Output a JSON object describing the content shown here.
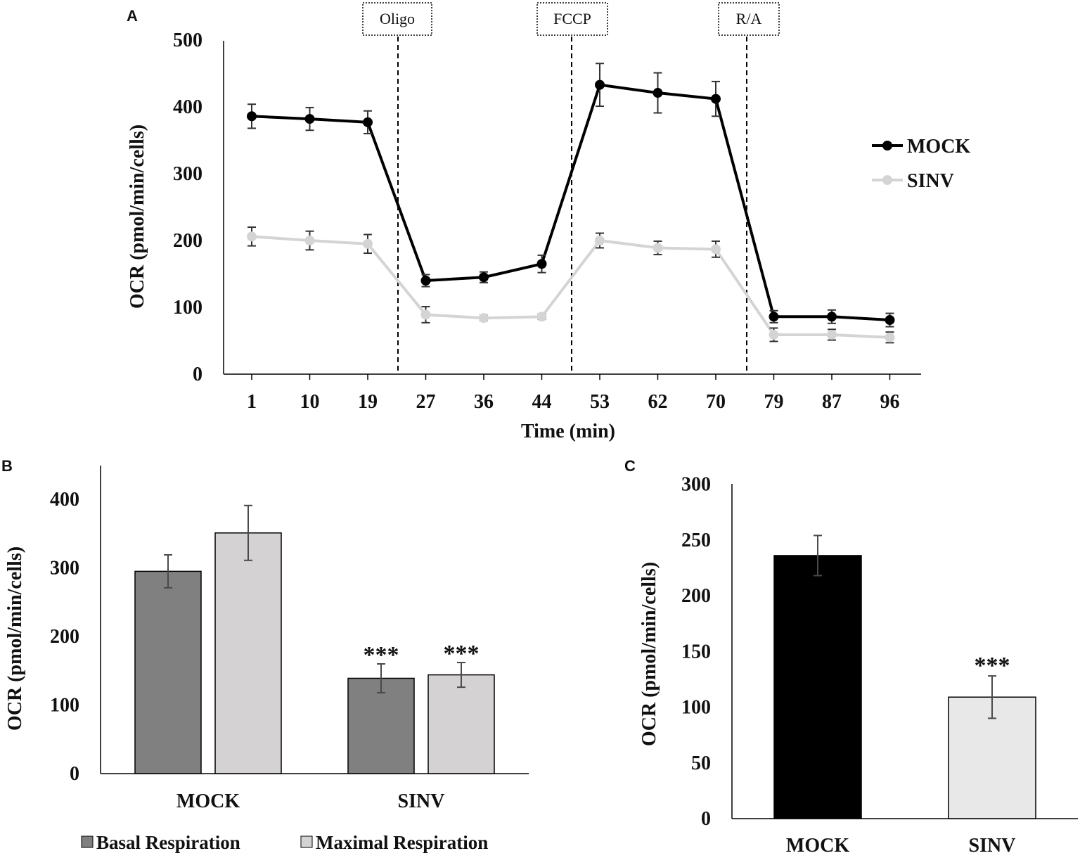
{
  "panels": {
    "A": {
      "label": "A",
      "markers": [
        "Oligo",
        "FCCP",
        "R/A"
      ],
      "legend": [
        "MOCK",
        "SINV"
      ]
    },
    "B": {
      "label": "B",
      "legend": [
        "Basal Respiration",
        "Maximal Respiration"
      ],
      "significance": "***"
    },
    "C": {
      "label": "C",
      "significance": "***"
    }
  },
  "colors": {
    "mock_line": "#000000",
    "sinv_line": "#d4d4d4",
    "basal_bar": "#808080",
    "maximal_bar": "#d4d2d2",
    "mock_bar": "#000000",
    "sinv_bar": "#e8e8e8",
    "error_bar": "#4a4a4a",
    "axis": "#000000"
  },
  "chart_data": [
    {
      "id": "A",
      "type": "line",
      "title": "",
      "xlabel": "Time (min)",
      "ylabel": "OCR (pmol/min/cells)",
      "ylim": [
        0,
        500
      ],
      "yticks": [
        0,
        100,
        200,
        300,
        400,
        500
      ],
      "categories": [
        "1",
        "10",
        "19",
        "27",
        "36",
        "44",
        "53",
        "62",
        "70",
        "79",
        "87",
        "96"
      ],
      "series": [
        {
          "name": "MOCK",
          "values": [
            386,
            382,
            377,
            140,
            145,
            165,
            433,
            421,
            412,
            86,
            86,
            81
          ],
          "errors": [
            18,
            17,
            17,
            9,
            8,
            13,
            32,
            30,
            26,
            9,
            10,
            10
          ]
        },
        {
          "name": "SINV",
          "values": [
            206,
            200,
            195,
            89,
            84,
            86,
            200,
            189,
            187,
            59,
            59,
            55
          ],
          "errors": [
            14,
            14,
            14,
            12,
            4,
            4,
            11,
            10,
            12,
            10,
            8,
            8
          ]
        }
      ],
      "annotations": [
        {
          "label": "Oligo",
          "after_category": "19"
        },
        {
          "label": "FCCP",
          "after_category": "44"
        },
        {
          "label": "R/A",
          "after_category": "70"
        }
      ],
      "legend_position": "right"
    },
    {
      "id": "B",
      "type": "bar",
      "xlabel": "",
      "ylabel": "OCR (pmol/min/cells)",
      "ylim": [
        0,
        450
      ],
      "yticks": [
        0,
        100,
        200,
        300,
        400
      ],
      "categories": [
        "MOCK",
        "SINV"
      ],
      "series": [
        {
          "name": "Basal Respiration",
          "values": [
            295,
            139
          ],
          "errors": [
            24,
            21
          ]
        },
        {
          "name": "Maximal Respiration",
          "values": [
            351,
            144
          ],
          "errors": [
            40,
            18
          ]
        }
      ],
      "annotations": [
        {
          "label": "***",
          "category": "SINV",
          "series": "Basal Respiration"
        },
        {
          "label": "***",
          "category": "SINV",
          "series": "Maximal Respiration"
        }
      ],
      "legend_position": "bottom"
    },
    {
      "id": "C",
      "type": "bar",
      "xlabel": "",
      "ylabel": "OCR (pmol/min/cells)",
      "ylim": [
        0,
        300
      ],
      "yticks": [
        0,
        50,
        100,
        150,
        200,
        250,
        300
      ],
      "categories": [
        "MOCK",
        "SINV"
      ],
      "values": [
        236,
        109
      ],
      "errors": [
        18,
        19
      ],
      "annotations": [
        {
          "label": "***",
          "category": "SINV"
        }
      ]
    }
  ]
}
